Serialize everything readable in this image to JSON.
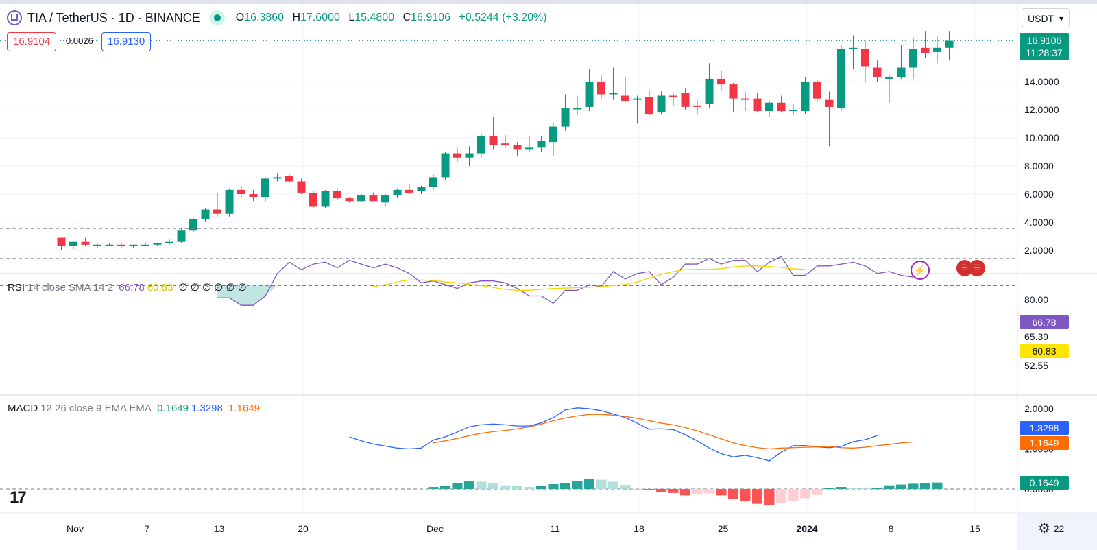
{
  "header": {
    "symbol": "TIA / TetherUS · 1D · BINANCE",
    "o_label": "O",
    "o": "16.3860",
    "h_label": "H",
    "h": "17.6000",
    "l_label": "L",
    "l": "15.4800",
    "c_label": "C",
    "c": "16.9106",
    "change": "+0.5244 (+3.20%)",
    "sell_price": "16.9104",
    "spread": "0.0026",
    "buy_price": "16.9130",
    "currency": "USDT"
  },
  "price_tag": {
    "price": "16.9106",
    "countdown": "11:28:37"
  },
  "rsi_legend": {
    "name": "RSI",
    "params": "14 close SMA 14 2",
    "rsi": "66.78",
    "sma": "60.83",
    "extra": "∅ ∅ ∅ ∅ ∅ ∅"
  },
  "rsi_tags": {
    "rsi": "66.78",
    "upper": "65.39",
    "sma": "60.83",
    "lower": "52.55"
  },
  "macd_legend": {
    "name": "MACD",
    "params": "12 26 close 9 EMA EMA",
    "hist": "0.1649",
    "macd": "1.3298",
    "signal": "1.1649"
  },
  "macd_tags": {
    "macd": "1.3298",
    "signal": "1.1649",
    "hist": "0.1649"
  },
  "icons": {
    "logo": "tradingview-logo",
    "settings": "gear-icon",
    "event1": "lightning-icon",
    "event2": "us-flag-icon"
  },
  "colors": {
    "up": "#089981",
    "down": "#f23645",
    "rsi": "#7e57c2",
    "rsi_sma": "#ffe600",
    "macd": "#2962ff",
    "signal": "#ff6d00"
  },
  "chart_data": [
    {
      "type": "candlestick",
      "title": "TIA / TetherUS · 1D · BINANCE",
      "y_axis_ticks": [
        2,
        4,
        6,
        8,
        10,
        12,
        14
      ],
      "ylim": [
        0.5,
        17.8
      ],
      "x_tick_labels": [
        "Nov",
        "7",
        "13",
        "20",
        "Dec",
        "11",
        "18",
        "25",
        "2024",
        "8",
        "15",
        "22"
      ],
      "x_tick_dates": [
        "2023-11-01",
        "2023-11-07",
        "2023-11-13",
        "2023-11-20",
        "2023-12-01",
        "2023-12-11",
        "2023-12-18",
        "2023-12-25",
        "2024-01-01",
        "2024-01-08",
        "2024-01-15",
        "2024-01-22"
      ],
      "first_date": "2023-10-31",
      "candles": [
        [
          2.9,
          2.9,
          2.0,
          2.3
        ],
        [
          2.3,
          2.6,
          2.1,
          2.6
        ],
        [
          2.6,
          2.9,
          2.3,
          2.4
        ],
        [
          2.4,
          2.5,
          2.2,
          2.4
        ],
        [
          2.4,
          2.5,
          2.3,
          2.4
        ],
        [
          2.4,
          2.5,
          2.2,
          2.3
        ],
        [
          2.3,
          2.4,
          2.2,
          2.4
        ],
        [
          2.4,
          2.5,
          2.3,
          2.4
        ],
        [
          2.4,
          2.5,
          2.3,
          2.5
        ],
        [
          2.5,
          2.8,
          2.4,
          2.6
        ],
        [
          2.6,
          3.6,
          2.5,
          3.4
        ],
        [
          3.4,
          4.3,
          3.3,
          4.2
        ],
        [
          4.2,
          5.0,
          4.0,
          4.9
        ],
        [
          4.9,
          6.1,
          4.4,
          4.6
        ],
        [
          4.6,
          6.4,
          4.4,
          6.3
        ],
        [
          6.3,
          6.6,
          5.8,
          6.0
        ],
        [
          6.0,
          6.3,
          5.5,
          5.8
        ],
        [
          5.8,
          7.2,
          5.5,
          7.1
        ],
        [
          7.1,
          7.5,
          6.9,
          7.2
        ],
        [
          7.3,
          7.4,
          6.8,
          6.9
        ],
        [
          6.9,
          7.1,
          6.0,
          6.1
        ],
        [
          6.1,
          6.2,
          5.0,
          5.1
        ],
        [
          5.1,
          6.3,
          5.0,
          6.2
        ],
        [
          6.2,
          6.4,
          5.6,
          5.7
        ],
        [
          5.7,
          5.8,
          5.4,
          5.5
        ],
        [
          5.5,
          6.0,
          5.4,
          5.9
        ],
        [
          5.9,
          6.1,
          5.5,
          5.5
        ],
        [
          5.4,
          6.0,
          5.1,
          5.9
        ],
        [
          5.9,
          6.4,
          5.7,
          6.3
        ],
        [
          6.3,
          6.7,
          6.0,
          6.1
        ],
        [
          6.2,
          6.6,
          6.0,
          6.5
        ],
        [
          6.5,
          7.4,
          6.3,
          7.2
        ],
        [
          7.2,
          9.0,
          7.0,
          8.9
        ],
        [
          8.9,
          9.3,
          8.3,
          8.6
        ],
        [
          8.6,
          9.4,
          8.0,
          8.9
        ],
        [
          8.9,
          10.3,
          8.6,
          10.1
        ],
        [
          10.1,
          11.5,
          9.2,
          9.5
        ],
        [
          9.6,
          10.2,
          9.3,
          9.5
        ],
        [
          9.5,
          9.7,
          8.7,
          9.2
        ],
        [
          9.2,
          10.1,
          9.0,
          9.3
        ],
        [
          9.3,
          10.1,
          9.0,
          9.8
        ],
        [
          9.7,
          11.1,
          8.7,
          10.8
        ],
        [
          10.8,
          13.1,
          10.5,
          12.1
        ],
        [
          12.1,
          13.0,
          11.6,
          12.1
        ],
        [
          12.2,
          14.9,
          11.9,
          14.0
        ],
        [
          14.0,
          14.5,
          12.8,
          13.1
        ],
        [
          13.1,
          15.0,
          12.7,
          13.2
        ],
        [
          13.0,
          14.3,
          12.5,
          12.6
        ],
        [
          12.7,
          13.0,
          11.0,
          12.8
        ],
        [
          12.9,
          13.4,
          11.6,
          11.7
        ],
        [
          11.8,
          13.3,
          11.7,
          13.0
        ],
        [
          13.0,
          13.2,
          12.3,
          12.9
        ],
        [
          13.2,
          13.5,
          12.0,
          12.2
        ],
        [
          12.3,
          12.7,
          11.7,
          12.2
        ],
        [
          12.4,
          15.3,
          12.1,
          14.2
        ],
        [
          14.2,
          14.8,
          13.4,
          13.8
        ],
        [
          13.8,
          13.9,
          11.8,
          12.8
        ],
        [
          12.8,
          13.3,
          11.9,
          12.7
        ],
        [
          12.8,
          13.2,
          11.8,
          11.9
        ],
        [
          11.9,
          12.6,
          11.5,
          12.5
        ],
        [
          12.5,
          13.0,
          11.8,
          11.9
        ],
        [
          11.9,
          12.4,
          11.6,
          12.0
        ],
        [
          11.9,
          14.3,
          11.7,
          14.0
        ],
        [
          14.0,
          14.1,
          12.6,
          12.8
        ],
        [
          12.7,
          13.3,
          9.4,
          12.2
        ],
        [
          12.1,
          16.6,
          11.9,
          16.3
        ],
        [
          16.4,
          17.3,
          14.9,
          16.4
        ],
        [
          16.3,
          16.9,
          14.0,
          15.1
        ],
        [
          15.0,
          15.5,
          14.0,
          14.3
        ],
        [
          14.2,
          14.5,
          12.5,
          14.3
        ],
        [
          14.3,
          16.6,
          14.2,
          15.0
        ],
        [
          15.0,
          17.1,
          14.2,
          16.3
        ],
        [
          16.4,
          17.6,
          15.7,
          16.0
        ],
        [
          16.1,
          17.2,
          15.3,
          16.4
        ],
        [
          16.4,
          17.6,
          15.5,
          16.9
        ]
      ]
    },
    {
      "type": "line",
      "title": "RSI 14 close SMA 14 2",
      "y_axis_ticks": [
        80.0,
        65.39,
        60.83,
        52.55
      ],
      "ylim": [
        44,
        90
      ],
      "bands": [
        72.5,
        58.0,
        42.0
      ],
      "rsi_start_index": 29,
      "rsi": [
        79,
        79,
        83,
        83,
        78,
        66,
        60,
        64,
        61,
        60,
        63,
        59,
        61,
        63,
        61,
        63,
        66,
        71,
        70,
        72,
        74,
        71,
        70,
        70,
        71,
        74,
        78,
        78,
        82,
        75,
        75,
        72,
        73,
        65,
        69,
        66,
        65,
        72,
        68,
        61,
        61,
        58,
        61,
        59,
        59,
        65,
        60,
        57,
        67,
        67,
        62,
        62,
        61,
        60,
        62,
        66,
        65,
        67,
        68
      ],
      "sma_start_index": 16,
      "sma": [
        73,
        72,
        70.5,
        69.5,
        69.5,
        69.8,
        70.5,
        71,
        71.8,
        72.5,
        73.5,
        74.5,
        75,
        75,
        74.5,
        74,
        73.8,
        73.6,
        73.4,
        73,
        72.5,
        71.8,
        70.5,
        68.5,
        66.5,
        65,
        64,
        63.8,
        63.8,
        63.5,
        62.5,
        62,
        62,
        62.3,
        62.8,
        63.5,
        63.8
      ],
      "sma_first_index": 32
    },
    {
      "type": "line+bar",
      "title": "MACD 12 26 close 9 EMA EMA",
      "y_axis_ticks": [
        2.0,
        1.0,
        0.0
      ],
      "ylim": [
        -0.5,
        2.1
      ],
      "macd_start_index": 25,
      "macd": [
        1.3,
        1.2,
        1.12,
        1.07,
        1.02,
        1.0,
        1.02,
        1.22,
        1.3,
        1.42,
        1.55,
        1.6,
        1.62,
        1.6,
        1.57,
        1.57,
        1.65,
        1.78,
        1.97,
        2.02,
        2.0,
        1.95,
        1.87,
        1.78,
        1.64,
        1.49,
        1.5,
        1.48,
        1.35,
        1.2,
        1.02,
        0.88,
        0.8,
        0.84,
        0.78,
        0.7,
        0.92,
        1.08,
        1.08,
        1.05,
        1.03,
        1.06,
        1.18,
        1.23,
        1.33
      ],
      "signal_start_index": 32,
      "signal": [
        1.15,
        1.2,
        1.26,
        1.33,
        1.39,
        1.43,
        1.46,
        1.5,
        1.55,
        1.62,
        1.7,
        1.77,
        1.82,
        1.86,
        1.86,
        1.84,
        1.81,
        1.76,
        1.7,
        1.64,
        1.6,
        1.53,
        1.45,
        1.35,
        1.25,
        1.15,
        1.08,
        1.03,
        1.0,
        1.02,
        1.03,
        1.04,
        1.05,
        1.06,
        1.03,
        1.02,
        1.04,
        1.08,
        1.11,
        1.15,
        1.17
      ],
      "hist_start_index": 32,
      "hist": [
        0.05,
        0.08,
        0.15,
        0.2,
        0.18,
        0.14,
        0.09,
        0.07,
        0.05,
        0.08,
        0.12,
        0.15,
        0.2,
        0.25,
        0.23,
        0.18,
        0.1,
        0.0,
        -0.03,
        -0.07,
        -0.1,
        -0.16,
        -0.14,
        -0.11,
        -0.16,
        -0.25,
        -0.3,
        -0.37,
        -0.4,
        -0.35,
        -0.3,
        -0.23,
        -0.15,
        0.03,
        0.05,
        0.03,
        0.02,
        0.02,
        0.09,
        0.11,
        0.13,
        0.15,
        0.16
      ]
    }
  ]
}
